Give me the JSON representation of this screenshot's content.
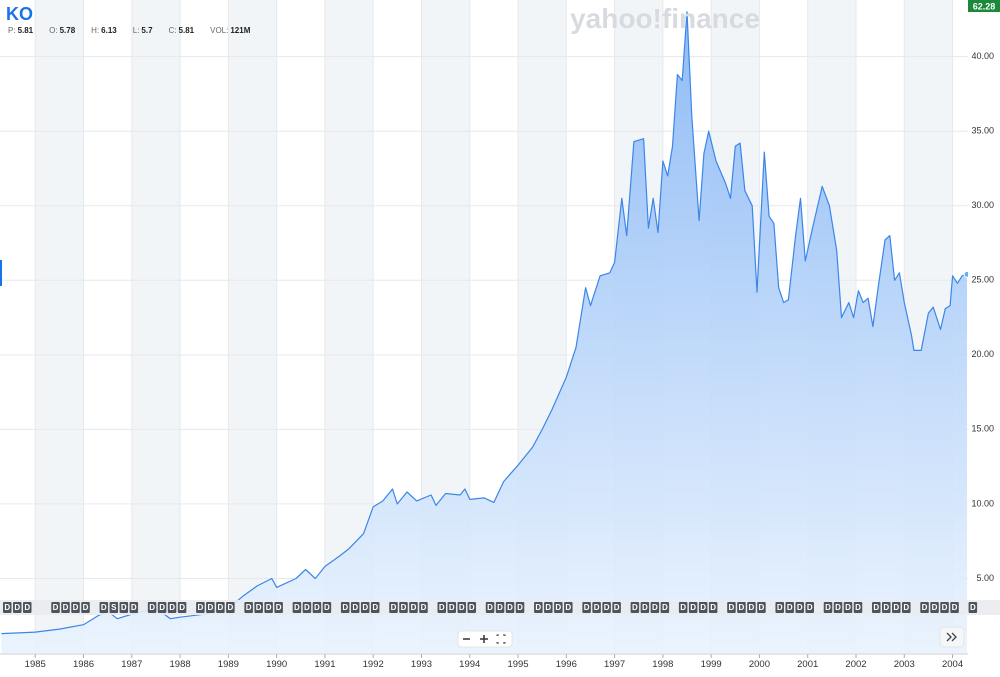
{
  "header": {
    "ticker": "KO",
    "quote": [
      {
        "label": "P:",
        "value": "5.81"
      },
      {
        "label": "O:",
        "value": "5.78"
      },
      {
        "label": "H:",
        "value": "6.13"
      },
      {
        "label": "L:",
        "value": "5.7"
      },
      {
        "label": "C:",
        "value": "5.81"
      },
      {
        "label": "VOL:",
        "value": "121M"
      }
    ],
    "watermark": "yahoo!finance",
    "price_badge": "62.28"
  },
  "chart_data": {
    "type": "area",
    "x": [
      1984.3,
      1985.0,
      1985.5,
      1986.0,
      1986.3,
      1986.5,
      1986.7,
      1987.0,
      1987.5,
      1987.8,
      1988.0,
      1988.5,
      1989.0,
      1989.3,
      1989.6,
      1989.9,
      1990.0,
      1990.4,
      1990.6,
      1990.8,
      1991.0,
      1991.3,
      1991.5,
      1991.8,
      1992.0,
      1992.2,
      1992.4,
      1992.5,
      1992.7,
      1992.9,
      1993.2,
      1993.3,
      1993.5,
      1993.8,
      1993.9,
      1994.0,
      1994.3,
      1994.5,
      1994.7,
      1995.0,
      1995.3,
      1995.5,
      1995.7,
      1996.0,
      1996.2,
      1996.4,
      1996.5,
      1996.7,
      1996.9,
      1997.0,
      1997.15,
      1997.25,
      1997.4,
      1997.6,
      1997.7,
      1997.8,
      1997.9,
      1998.0,
      1998.1,
      1998.2,
      1998.3,
      1998.4,
      1998.5,
      1998.6,
      1998.75,
      1998.85,
      1998.95,
      1999.1,
      1999.3,
      1999.4,
      1999.5,
      1999.6,
      1999.7,
      1999.85,
      1999.95,
      2000.1,
      2000.2,
      2000.3,
      2000.4,
      2000.5,
      2000.6,
      2000.75,
      2000.85,
      2000.95,
      2001.1,
      2001.3,
      2001.45,
      2001.6,
      2001.7,
      2001.85,
      2001.95,
      2002.05,
      2002.15,
      2002.25,
      2002.35,
      2002.45,
      2002.6,
      2002.7,
      2002.8,
      2002.9,
      2003.0,
      2003.15,
      2003.2,
      2003.35,
      2003.5,
      2003.6,
      2003.75,
      2003.85,
      2003.95,
      2004.0,
      2004.1,
      2004.2,
      2004.3
    ],
    "series": [
      {
        "name": "KO",
        "color": "#3b86e8",
        "values": [
          1.3,
          1.4,
          1.6,
          1.9,
          2.5,
          2.8,
          2.3,
          2.6,
          3.0,
          2.3,
          2.4,
          2.6,
          3.0,
          3.8,
          4.5,
          5.0,
          4.4,
          5.0,
          5.6,
          5.0,
          5.8,
          6.5,
          7.0,
          8.0,
          9.8,
          10.2,
          11.0,
          10.0,
          10.8,
          10.2,
          10.6,
          9.9,
          10.7,
          10.6,
          11.0,
          10.3,
          10.4,
          10.1,
          11.5,
          12.6,
          13.8,
          15.0,
          16.3,
          18.5,
          20.5,
          24.5,
          23.3,
          25.3,
          25.5,
          26.2,
          30.5,
          28.0,
          34.3,
          34.5,
          28.5,
          30.5,
          28.2,
          33.0,
          32.0,
          34.0,
          38.8,
          38.4,
          43.0,
          36.0,
          29.0,
          33.5,
          35.0,
          33.0,
          31.5,
          30.5,
          34.0,
          34.2,
          31.0,
          30.0,
          24.2,
          33.6,
          29.3,
          28.8,
          24.5,
          23.5,
          23.7,
          28.0,
          30.5,
          26.3,
          28.5,
          31.3,
          30.0,
          27.0,
          22.5,
          23.5,
          22.5,
          24.3,
          23.5,
          23.8,
          21.9,
          24.3,
          27.7,
          28.0,
          25.0,
          25.5,
          23.5,
          21.3,
          20.3,
          20.3,
          22.8,
          23.2,
          21.7,
          23.1,
          23.3,
          25.3,
          24.8,
          25.3,
          25.4
        ]
      }
    ],
    "xlim": [
      1984.27,
      2004.32
    ],
    "xticks": [
      1985,
      1986,
      1987,
      1988,
      1989,
      1990,
      1991,
      1992,
      1993,
      1994,
      1995,
      1996,
      1997,
      1998,
      1999,
      2000,
      2001,
      2002,
      2003,
      2004
    ],
    "ylim": [
      0,
      43.8
    ],
    "yticks": [
      {
        "value": 5,
        "label": "5.00"
      },
      {
        "value": 10,
        "label": "10.00"
      },
      {
        "value": 15,
        "label": "15.00"
      },
      {
        "value": 20,
        "label": "20.00"
      },
      {
        "value": 25,
        "label": "25.00"
      },
      {
        "value": 30,
        "label": "30.00"
      },
      {
        "value": 35,
        "label": "35.00"
      },
      {
        "value": 40,
        "label": "40.00"
      }
    ],
    "grid": true,
    "events": [
      [
        "D",
        "D",
        "D"
      ],
      [
        "D",
        "D",
        "D",
        "D"
      ],
      [
        "D",
        "S",
        "D",
        "D"
      ],
      [
        "D",
        "D",
        "D",
        "D"
      ],
      [
        "D",
        "D",
        "D",
        "D"
      ],
      [
        "D",
        "D",
        "D",
        "D"
      ],
      [
        "D",
        "D",
        "D",
        "D"
      ],
      [
        "D",
        "D",
        "D",
        "D"
      ],
      [
        "D",
        "D",
        "D",
        "D"
      ],
      [
        "D",
        "D",
        "D",
        "D"
      ],
      [
        "D",
        "D",
        "D",
        "D"
      ],
      [
        "D",
        "D",
        "D",
        "D"
      ],
      [
        "D",
        "D",
        "D",
        "D"
      ],
      [
        "D",
        "D",
        "D",
        "D"
      ],
      [
        "D",
        "D",
        "D",
        "D"
      ],
      [
        "D",
        "D",
        "D",
        "D"
      ],
      [
        "D",
        "D",
        "D",
        "D"
      ],
      [
        "D",
        "D",
        "D",
        "D"
      ],
      [
        "D",
        "D",
        "D",
        "D"
      ],
      [
        "D",
        "D",
        "D",
        "D"
      ],
      [
        "D"
      ]
    ]
  }
}
